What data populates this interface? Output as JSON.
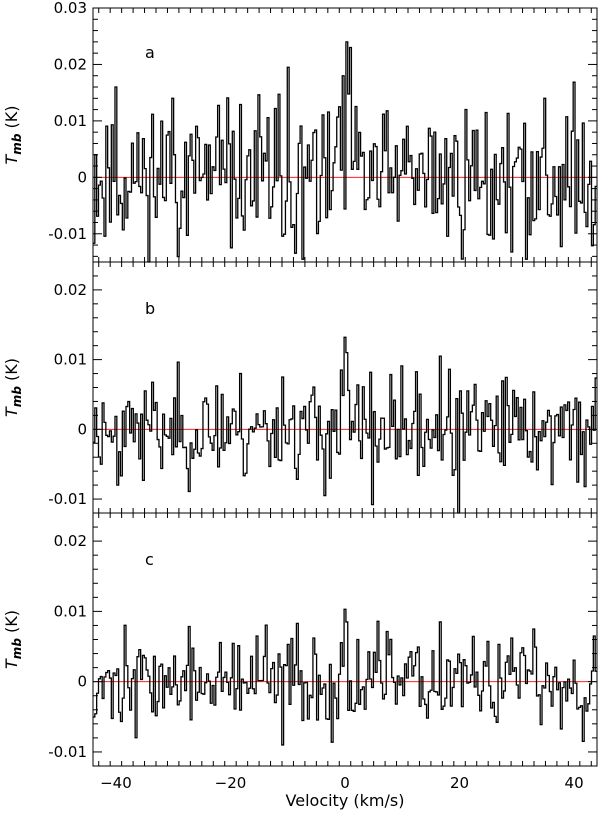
{
  "chart_data": {
    "type": "line",
    "style": "step",
    "xlabel": "Velocity (km/s)",
    "xlim": [
      -44,
      44
    ],
    "xticks": [
      -40,
      -20,
      0,
      20,
      40
    ],
    "x_tick_labels": [
      "−40",
      "−20",
      "0",
      "20",
      "40"
    ],
    "line_color": "#000000",
    "zero_line_color": "#ff0000",
    "channel_width": 0.32,
    "panels": [
      {
        "label": "a",
        "ylabel_base": "T",
        "ylabel_sub": "mb",
        "ylabel_unit": "(K)",
        "ylim": [
          -0.015,
          0.03
        ],
        "yticks": [
          -0.01,
          0,
          0.01,
          0.02,
          0.03
        ],
        "y_tick_labels": [
          "-0.01",
          "0",
          "0.01",
          "0.02",
          "0.03"
        ],
        "noise_rms": 0.0065,
        "seed": 11,
        "features": [
          {
            "x": -40.2,
            "y": 0.016
          },
          {
            "x": -30.3,
            "y": 0.014
          },
          {
            "x": -10.0,
            "y": 0.0195
          },
          {
            "x": -7.5,
            "y": -0.0145
          },
          {
            "x": 0.2,
            "y": 0.024
          },
          {
            "x": 0.9,
            "y": 0.023
          },
          {
            "x": -0.6,
            "y": 0.018
          },
          {
            "x": -1.2,
            "y": 0.0125
          },
          {
            "x": 31.5,
            "y": -0.0145
          },
          {
            "x": 34.6,
            "y": 0.014
          }
        ]
      },
      {
        "label": "b",
        "ylabel_base": "T",
        "ylabel_sub": "mb",
        "ylabel_unit": "(K)",
        "ylim": [
          -0.012,
          0.024
        ],
        "yticks": [
          -0.01,
          0,
          0.01,
          0.02
        ],
        "y_tick_labels": [
          "-0.01",
          "0",
          "0.01",
          "0.02"
        ],
        "noise_rms": 0.0036,
        "seed": 23,
        "features": [
          {
            "x": -0.2,
            "y": 0.0132
          },
          {
            "x": 0.3,
            "y": 0.011
          },
          {
            "x": -0.8,
            "y": 0.0085
          },
          {
            "x": 16.5,
            "y": 0.0105
          },
          {
            "x": 4.5,
            "y": -0.0108
          },
          {
            "x": 19.8,
            "y": -0.0122
          },
          {
            "x": -40.0,
            "y": -0.008
          },
          {
            "x": -18.5,
            "y": 0.008
          },
          {
            "x": -11.0,
            "y": 0.0075
          }
        ]
      },
      {
        "label": "c",
        "ylabel_base": "T",
        "ylabel_sub": "mb",
        "ylabel_unit": "(K)",
        "ylim": [
          -0.012,
          0.024
        ],
        "yticks": [
          -0.01,
          0,
          0.01,
          0.02
        ],
        "y_tick_labels": [
          "-0.01",
          "0",
          "0.01",
          "0.02"
        ],
        "noise_rms": 0.0032,
        "seed": 37,
        "features": [
          {
            "x": -0.3,
            "y": 0.0103
          },
          {
            "x": 0.3,
            "y": 0.0085
          },
          {
            "x": 16.5,
            "y": 0.0085
          },
          {
            "x": -11.0,
            "y": -0.009
          },
          {
            "x": -8.5,
            "y": 0.0083
          },
          {
            "x": 41.5,
            "y": -0.0085
          },
          {
            "x": 43.5,
            "y": 0.0065
          }
        ]
      }
    ]
  }
}
